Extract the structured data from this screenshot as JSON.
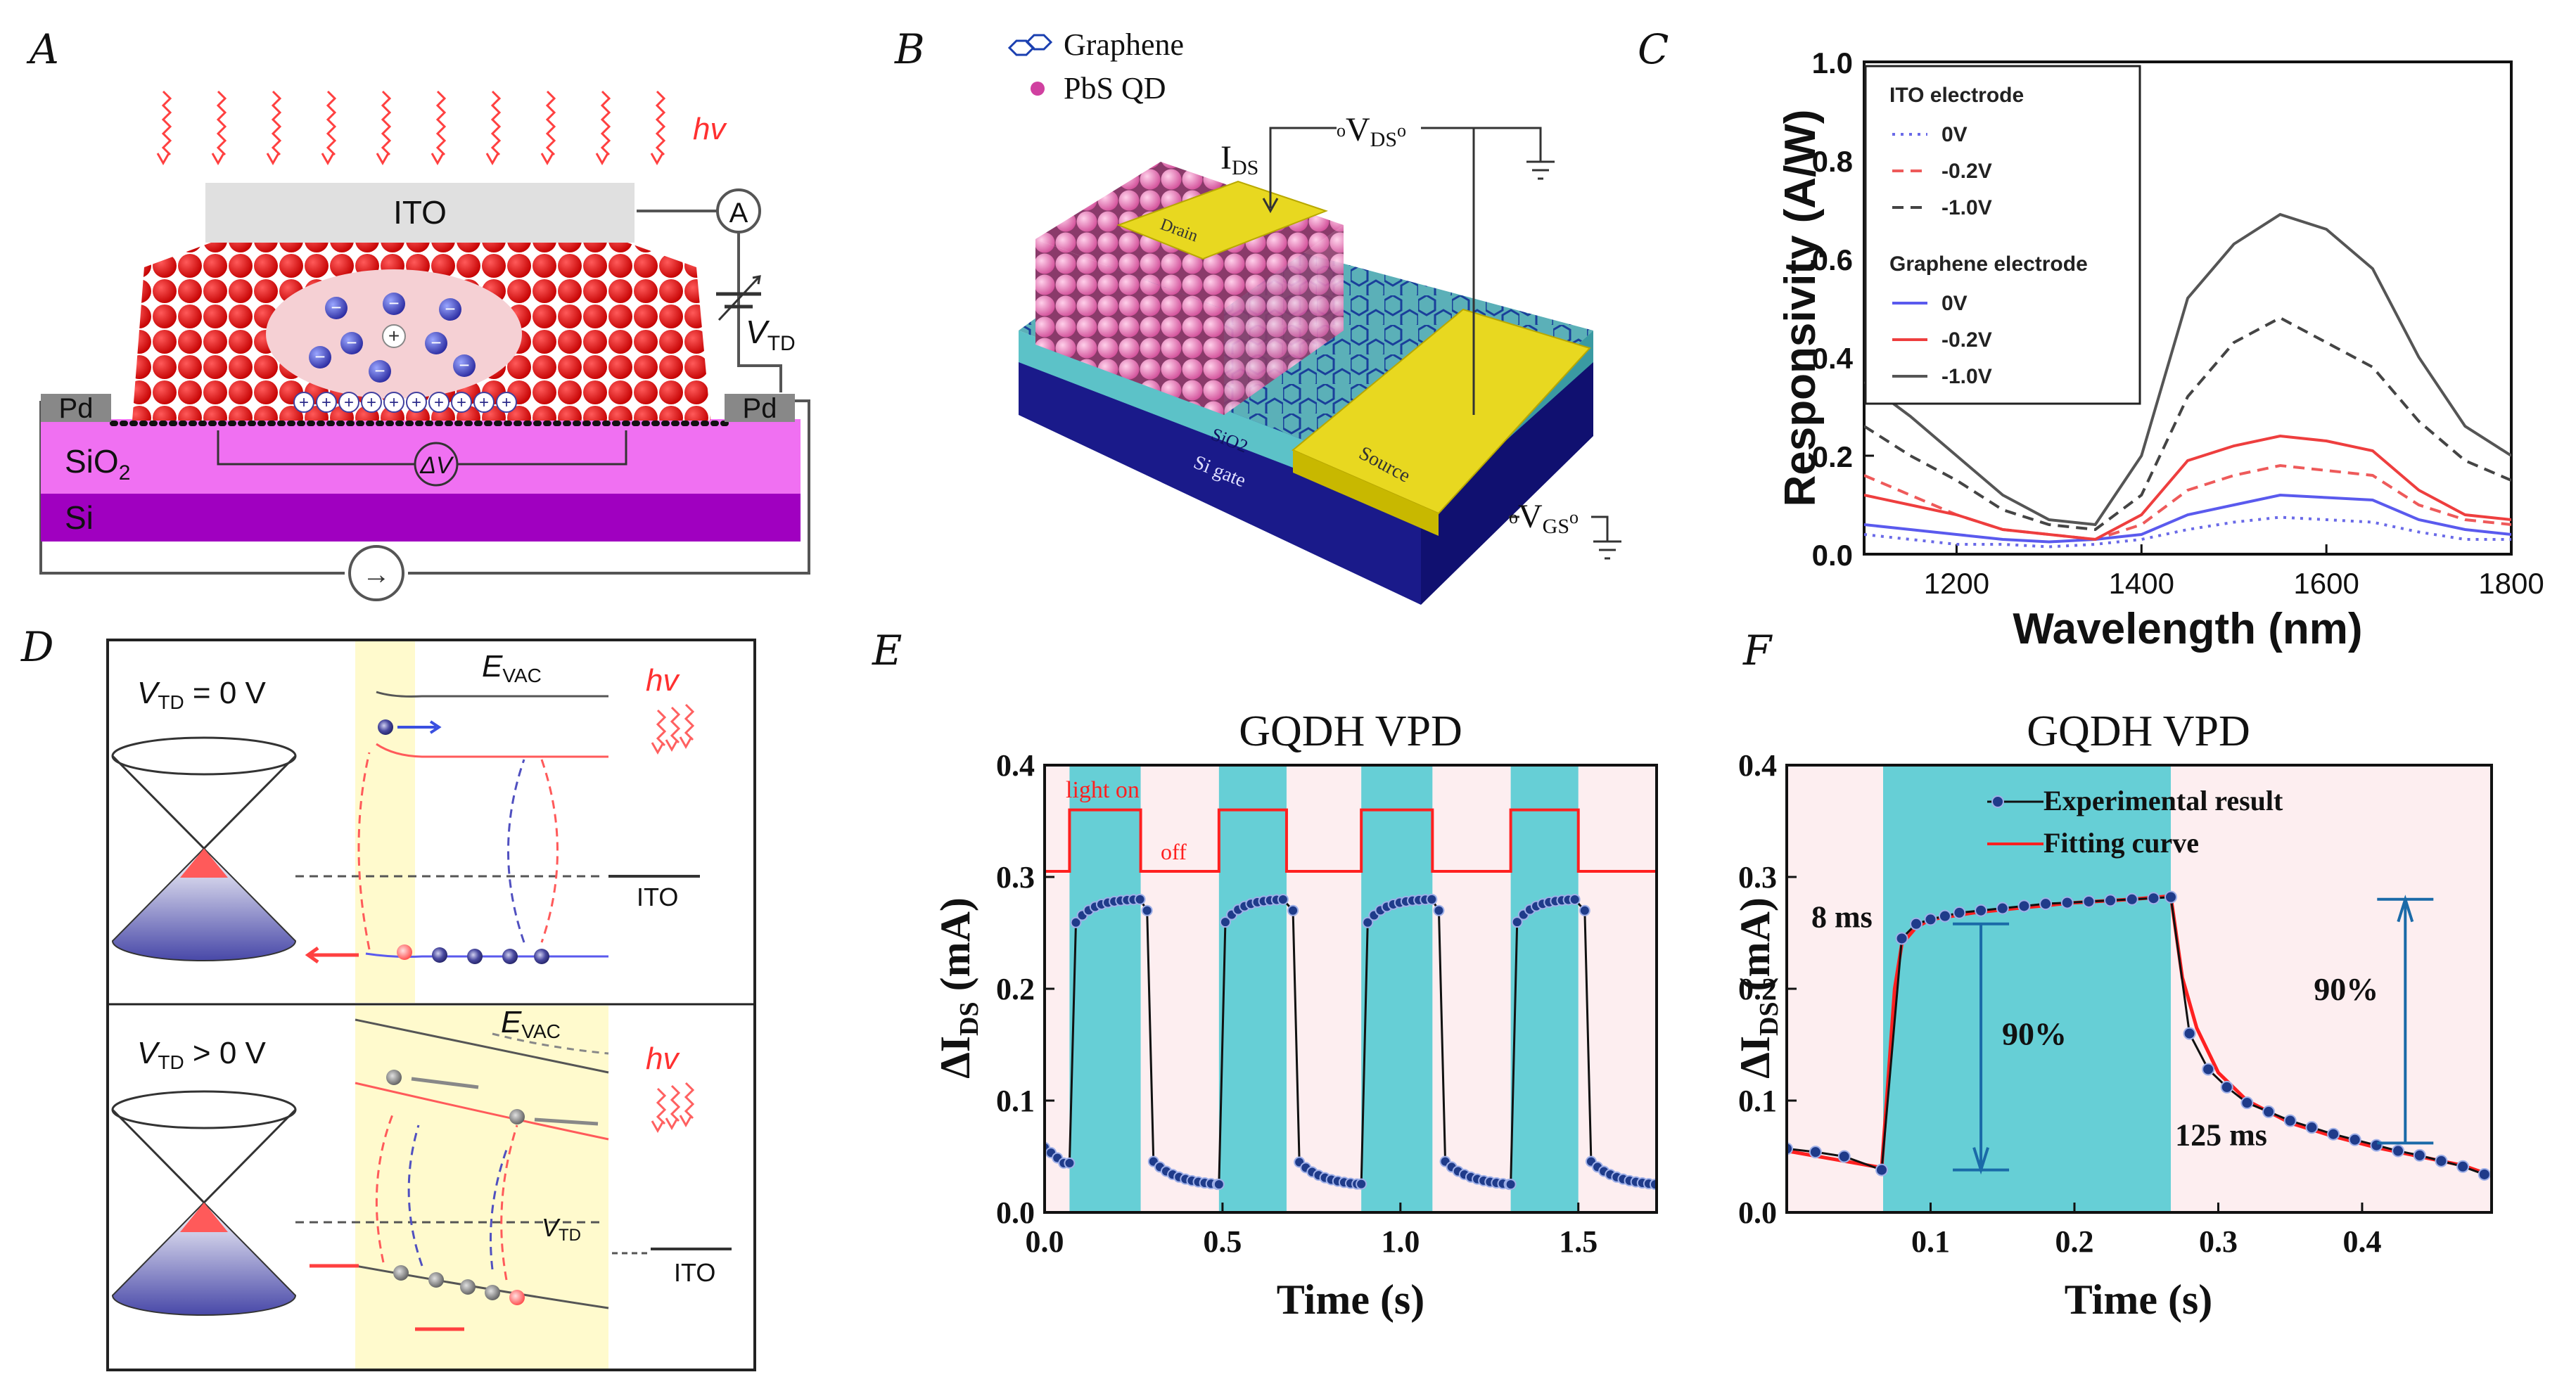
{
  "panel_labels": {
    "a": "A",
    "b": "B",
    "c": "C",
    "d": "D",
    "e": "E",
    "f": "F"
  },
  "panel_a": {
    "hv": "hv",
    "ito": "ITO",
    "ammeter": "A",
    "vtd_v": "V",
    "vtd_sub": "TD",
    "pd_left": "Pd",
    "pd_right": "Pd",
    "sio2": "SiO",
    "sio2_sub": "2",
    "si": "Si",
    "delta_v": "ΔV",
    "minus": "−",
    "plus": "+",
    "current_symbol": "→"
  },
  "panel_b": {
    "legend_graphene": "Graphene",
    "legend_pbs": "PbS QD",
    "ids_i": "I",
    "ids_sub": "DS",
    "vds_v": "V",
    "vds_sub": "DS",
    "vgs_v": "V",
    "vgs_sub": "GS",
    "drain": "Drain",
    "source": "Source",
    "sio2": "SiO2",
    "si_gate": "Si gate"
  },
  "panel_d": {
    "top_vtd": "V",
    "top_vtd_sub": "TD",
    "top_vtd_rest": " = 0 V",
    "bot_vtd": "V",
    "bot_vtd_sub": "TD",
    "bot_vtd_rest": " > 0 V",
    "evac_e": "E",
    "evac_sub": "VAC",
    "hv": "hv",
    "ito": "ITO",
    "vtd_side": "V",
    "vtd_side_sub": "TD"
  },
  "chart_data": [
    {
      "id": "C",
      "type": "line",
      "title": "",
      "xlabel": "Wavelength (nm)",
      "ylabel": "Responsivity (A/W)",
      "xlim": [
        1100,
        1800
      ],
      "ylim": [
        0.0,
        1.0
      ],
      "xticks": [
        1200,
        1400,
        1600,
        1800
      ],
      "xtick_labels": [
        "1200",
        "1400",
        "1600",
        "1800"
      ],
      "yticks": [
        0.0,
        0.2,
        0.4,
        0.6,
        0.8,
        1.0
      ],
      "ytick_labels": [
        "0.0",
        "0.2",
        "0.4",
        "0.6",
        "0.8",
        "1.0"
      ],
      "legend_groups": [
        "ITO electrode",
        "Graphene electrode"
      ],
      "x": [
        1100,
        1150,
        1200,
        1250,
        1300,
        1350,
        1400,
        1450,
        1500,
        1550,
        1600,
        1650,
        1700,
        1750,
        1800
      ],
      "series": [
        {
          "name": "0V",
          "group": "ITO electrode",
          "color": "#6a6ae8",
          "dash": "dot",
          "values": [
            0.04,
            0.03,
            0.02,
            0.02,
            0.015,
            0.02,
            0.03,
            0.05,
            0.065,
            0.075,
            0.07,
            0.065,
            0.045,
            0.03,
            0.03
          ]
        },
        {
          "name": "-0.2V",
          "group": "ITO electrode",
          "color": "#ee5a5a",
          "dash": "dash",
          "values": [
            0.16,
            0.12,
            0.08,
            0.05,
            0.04,
            0.03,
            0.06,
            0.13,
            0.16,
            0.18,
            0.17,
            0.16,
            0.1,
            0.07,
            0.06
          ]
        },
        {
          "name": "-1.0V",
          "group": "ITO electrode",
          "color": "#444444",
          "dash": "dash",
          "values": [
            0.26,
            0.2,
            0.15,
            0.09,
            0.06,
            0.05,
            0.12,
            0.32,
            0.43,
            0.48,
            0.43,
            0.38,
            0.27,
            0.19,
            0.15
          ]
        },
        {
          "name": "0V",
          "group": "Graphene electrode",
          "color": "#5a5aee",
          "dash": "solid",
          "values": [
            0.06,
            0.05,
            0.04,
            0.03,
            0.025,
            0.03,
            0.04,
            0.08,
            0.1,
            0.12,
            0.115,
            0.11,
            0.07,
            0.05,
            0.04
          ]
        },
        {
          "name": "-0.2V",
          "group": "Graphene electrode",
          "color": "#ee3e3e",
          "dash": "solid",
          "values": [
            0.12,
            0.1,
            0.08,
            0.05,
            0.04,
            0.03,
            0.08,
            0.19,
            0.22,
            0.24,
            0.23,
            0.21,
            0.13,
            0.08,
            0.07
          ]
        },
        {
          "name": "-1.0V",
          "group": "Graphene electrode",
          "color": "#555555",
          "dash": "solid",
          "values": [
            0.35,
            0.28,
            0.2,
            0.12,
            0.07,
            0.06,
            0.2,
            0.52,
            0.63,
            0.69,
            0.66,
            0.58,
            0.4,
            0.26,
            0.2
          ]
        }
      ]
    },
    {
      "id": "E",
      "type": "line",
      "title": "GQDH VPD",
      "xlabel": "Time (s)",
      "ylabel_main": "ΔI",
      "ylabel_sub": "DS",
      "ylabel_unit": " (mA)",
      "xlim": [
        0.0,
        1.72
      ],
      "ylim": [
        0.0,
        0.4
      ],
      "xticks": [
        0.0,
        0.5,
        1.0,
        1.5
      ],
      "xtick_labels": [
        "0.0",
        "0.5",
        "1.0",
        "1.5"
      ],
      "yticks": [
        0.0,
        0.1,
        0.2,
        0.3,
        0.4
      ],
      "ytick_labels": [
        "0.0",
        "0.1",
        "0.2",
        "0.3",
        "0.4"
      ],
      "light_on_label": "light on",
      "off_label": "off",
      "on_intervals": [
        [
          0.07,
          0.27
        ],
        [
          0.49,
          0.68
        ],
        [
          0.89,
          1.09
        ],
        [
          1.31,
          1.5
        ]
      ],
      "light_square_wave": {
        "high": 0.36,
        "low": 0.305
      },
      "pulse": {
        "rise_start": 0.25,
        "rise_end": 0.28,
        "fall_start": 0.06,
        "fall_end": 0.025,
        "baseline_start": 0.058
      }
    },
    {
      "id": "F",
      "type": "line",
      "title": "GQDH VPD",
      "xlabel": "Time (s)",
      "ylabel_main": "ΔI",
      "ylabel_sub": "DS",
      "ylabel_unit": " (mA)",
      "xlim": [
        0.0,
        0.49
      ],
      "ylim": [
        0.0,
        0.4
      ],
      "xticks": [
        0.1,
        0.2,
        0.3,
        0.4
      ],
      "xtick_labels": [
        "0.1",
        "0.2",
        "0.3",
        "0.4"
      ],
      "yticks": [
        0.0,
        0.1,
        0.2,
        0.3,
        0.4
      ],
      "ytick_labels": [
        "0.0",
        "0.1",
        "0.2",
        "0.3",
        "0.4"
      ],
      "legend": [
        "Experimental result",
        "Fitting curve"
      ],
      "on_interval": [
        0.067,
        0.267
      ],
      "annotations": {
        "rise_time": "8 ms",
        "rise_pct": "90%",
        "fall_pct": "90%",
        "fall_time": "125 ms"
      },
      "experimental": {
        "x": [
          0.0,
          0.02,
          0.04,
          0.066,
          0.08,
          0.09,
          0.1,
          0.11,
          0.12,
          0.135,
          0.15,
          0.165,
          0.18,
          0.195,
          0.21,
          0.225,
          0.24,
          0.255,
          0.267,
          0.28,
          0.293,
          0.306,
          0.32,
          0.335,
          0.35,
          0.365,
          0.38,
          0.395,
          0.41,
          0.425,
          0.44,
          0.455,
          0.47,
          0.485
        ],
        "y": [
          0.057,
          0.054,
          0.05,
          0.038,
          0.245,
          0.258,
          0.262,
          0.265,
          0.268,
          0.27,
          0.272,
          0.274,
          0.276,
          0.277,
          0.278,
          0.279,
          0.28,
          0.281,
          0.282,
          0.16,
          0.128,
          0.112,
          0.098,
          0.09,
          0.082,
          0.076,
          0.07,
          0.065,
          0.06,
          0.055,
          0.051,
          0.046,
          0.041,
          0.034
        ]
      },
      "fitting": {
        "x": [
          0.0,
          0.066,
          0.07,
          0.075,
          0.08,
          0.09,
          0.1,
          0.13,
          0.16,
          0.2,
          0.24,
          0.267,
          0.275,
          0.285,
          0.3,
          0.32,
          0.35,
          0.38,
          0.41,
          0.44,
          0.47,
          0.49
        ],
        "y": [
          0.055,
          0.04,
          0.11,
          0.2,
          0.24,
          0.255,
          0.262,
          0.268,
          0.272,
          0.277,
          0.28,
          0.283,
          0.21,
          0.165,
          0.125,
          0.1,
          0.08,
          0.068,
          0.058,
          0.05,
          0.042,
          0.033
        ]
      }
    }
  ]
}
